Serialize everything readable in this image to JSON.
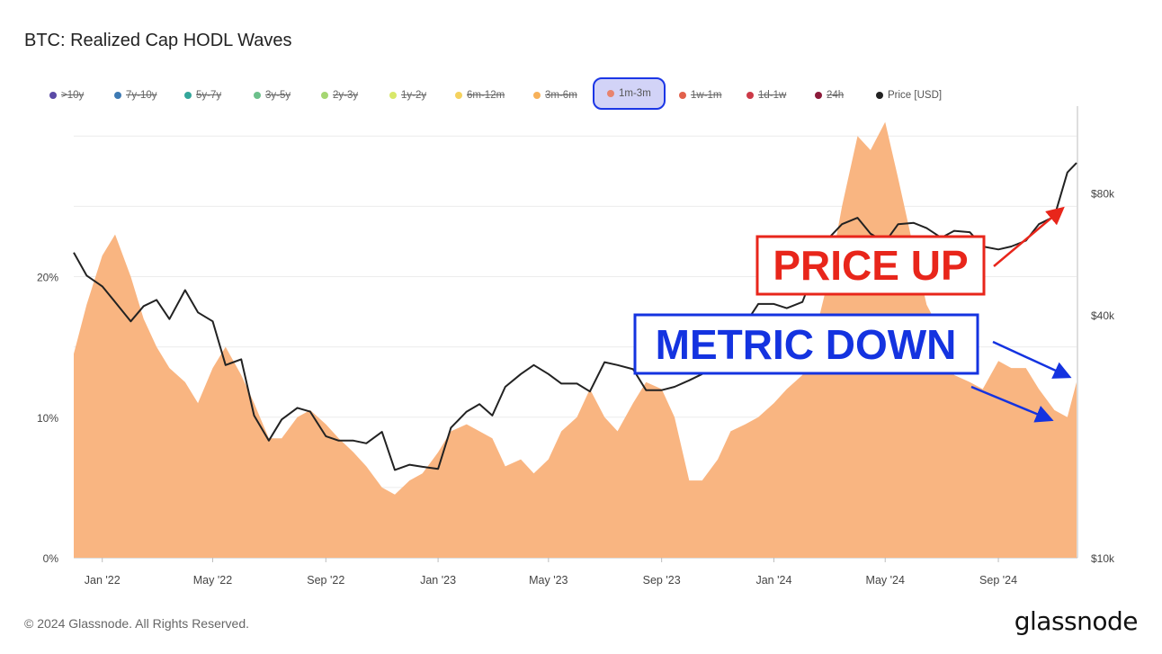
{
  "title": "BTC: Realized Cap HODL Waves",
  "legend": [
    {
      "label": ">10y",
      "color": "#5b4aa6",
      "active": false
    },
    {
      "label": "7y-10y",
      "color": "#3d7ab3",
      "active": false
    },
    {
      "label": "5y-7y",
      "color": "#33a69a",
      "active": false
    },
    {
      "label": "3y-5y",
      "color": "#6cc08b",
      "active": false
    },
    {
      "label": "2y-3y",
      "color": "#a5d672",
      "active": false
    },
    {
      "label": "1y-2y",
      "color": "#d8e86a",
      "active": false
    },
    {
      "label": "6m-12m",
      "color": "#f5d25e",
      "active": false
    },
    {
      "label": "3m-6m",
      "color": "#f7b15a",
      "active": false
    },
    {
      "label": "1m-3m",
      "color": "#e8836e",
      "active": true
    },
    {
      "label": "1w-1m",
      "color": "#e2614c",
      "active": false
    },
    {
      "label": "1d-1w",
      "color": "#cc3a48",
      "active": false
    },
    {
      "label": "24h",
      "color": "#8c1a3a",
      "active": false
    },
    {
      "label": "Price [USD]",
      "color": "#222222",
      "active": true
    }
  ],
  "annotations": {
    "price_up": "PRICE UP",
    "metric_down": "METRIC DOWN",
    "price_up_color": "#e8261b",
    "metric_down_color": "#1433e0"
  },
  "footer": "© 2024 Glassnode. All Rights Reserved.",
  "logo": "glassnode",
  "chart_data": {
    "type": "area",
    "title": "BTC: Realized Cap HODL Waves",
    "x_ticks": [
      "Jan '22",
      "May '22",
      "Sep '22",
      "Jan '23",
      "May '23",
      "Sep '23",
      "Jan '24",
      "May '24",
      "Sep '24"
    ],
    "y_left_ticks": [
      "0%",
      "10%",
      "20%"
    ],
    "y_left_range": [
      0,
      32
    ],
    "y_right_ticks": [
      "$10k",
      "$40k",
      "$80k"
    ],
    "y_right_scale": "log",
    "y_right_range": [
      10000,
      130000
    ],
    "grid": true,
    "legend_position": "top",
    "series": [
      {
        "name": "1m-3m",
        "axis": "left",
        "color": "#f9b581",
        "x": [
          "2021-12-01",
          "2021-12-15",
          "2022-01-01",
          "2022-01-15",
          "2022-02-01",
          "2022-02-15",
          "2022-03-01",
          "2022-03-15",
          "2022-04-01",
          "2022-04-15",
          "2022-05-01",
          "2022-05-15",
          "2022-06-01",
          "2022-06-15",
          "2022-07-01",
          "2022-07-15",
          "2022-08-01",
          "2022-08-15",
          "2022-09-01",
          "2022-09-15",
          "2022-10-01",
          "2022-10-15",
          "2022-11-01",
          "2022-11-15",
          "2022-12-01",
          "2022-12-15",
          "2023-01-01",
          "2023-01-15",
          "2023-02-01",
          "2023-02-15",
          "2023-03-01",
          "2023-03-15",
          "2023-04-01",
          "2023-04-15",
          "2023-05-01",
          "2023-05-15",
          "2023-06-01",
          "2023-06-15",
          "2023-07-01",
          "2023-07-15",
          "2023-08-01",
          "2023-08-15",
          "2023-09-01",
          "2023-09-15",
          "2023-10-01",
          "2023-10-15",
          "2023-11-01",
          "2023-11-15",
          "2023-12-01",
          "2023-12-15",
          "2024-01-01",
          "2024-01-15",
          "2024-02-01",
          "2024-02-15",
          "2024-03-01",
          "2024-03-15",
          "2024-04-01",
          "2024-04-15",
          "2024-05-01",
          "2024-05-15",
          "2024-06-01",
          "2024-06-15",
          "2024-07-01",
          "2024-07-15",
          "2024-08-01",
          "2024-08-15",
          "2024-09-01",
          "2024-09-15",
          "2024-10-01",
          "2024-10-15",
          "2024-11-01",
          "2024-11-15",
          "2024-11-25"
        ],
        "values": [
          14.5,
          18,
          21.5,
          23,
          20,
          17,
          15,
          13.5,
          12.5,
          11,
          13.5,
          15,
          13,
          11,
          8.5,
          8.5,
          10,
          10.5,
          9.5,
          8.5,
          7.5,
          6.5,
          5,
          4.5,
          5.5,
          6,
          7.5,
          9,
          9.5,
          9,
          8.5,
          6.5,
          7,
          6,
          7,
          9,
          10,
          12,
          10,
          9,
          11,
          12.5,
          12,
          10,
          5.5,
          5.5,
          7,
          9,
          9.5,
          10,
          11,
          12,
          13,
          16,
          20,
          25,
          30,
          29,
          31,
          27,
          22,
          18,
          16,
          13,
          12.5,
          12,
          14,
          13.5,
          13.5,
          12,
          10.5,
          10,
          12.5
        ]
      },
      {
        "name": "Price [USD]",
        "axis": "right",
        "color": "#222222",
        "x": [
          "2021-12-01",
          "2021-12-15",
          "2022-01-01",
          "2022-01-15",
          "2022-02-01",
          "2022-02-15",
          "2022-03-01",
          "2022-03-15",
          "2022-04-01",
          "2022-04-15",
          "2022-05-01",
          "2022-05-15",
          "2022-06-01",
          "2022-06-15",
          "2022-07-01",
          "2022-07-15",
          "2022-08-01",
          "2022-08-15",
          "2022-09-01",
          "2022-09-15",
          "2022-10-01",
          "2022-10-15",
          "2022-11-01",
          "2022-11-15",
          "2022-12-01",
          "2022-12-15",
          "2023-01-01",
          "2023-01-15",
          "2023-02-01",
          "2023-02-15",
          "2023-03-01",
          "2023-03-15",
          "2023-04-01",
          "2023-04-15",
          "2023-05-01",
          "2023-05-15",
          "2023-06-01",
          "2023-06-15",
          "2023-07-01",
          "2023-07-15",
          "2023-08-01",
          "2023-08-15",
          "2023-09-01",
          "2023-09-15",
          "2023-10-01",
          "2023-10-15",
          "2023-11-01",
          "2023-11-15",
          "2023-12-01",
          "2023-12-15",
          "2024-01-01",
          "2024-01-15",
          "2024-02-01",
          "2024-02-15",
          "2024-03-01",
          "2024-03-15",
          "2024-04-01",
          "2024-04-15",
          "2024-05-01",
          "2024-05-15",
          "2024-06-01",
          "2024-06-15",
          "2024-07-01",
          "2024-07-15",
          "2024-08-01",
          "2024-08-15",
          "2024-09-01",
          "2024-09-15",
          "2024-10-01",
          "2024-10-15",
          "2024-11-01",
          "2024-11-15",
          "2024-11-25"
        ],
        "values": [
          57000,
          50000,
          47000,
          43000,
          38500,
          42000,
          43500,
          39000,
          46000,
          40500,
          38500,
          30000,
          31000,
          22500,
          19500,
          22000,
          23500,
          23000,
          20000,
          19500,
          19500,
          19200,
          20500,
          16500,
          17000,
          16800,
          16600,
          21000,
          23000,
          24000,
          22500,
          26500,
          28500,
          30000,
          28500,
          27000,
          27000,
          25800,
          30500,
          30000,
          29300,
          26000,
          26000,
          26500,
          27500,
          28500,
          34500,
          36500,
          38000,
          42500,
          42500,
          41500,
          43000,
          52000,
          62000,
          67000,
          69500,
          63500,
          60500,
          67000,
          67500,
          65500,
          62000,
          64500,
          64000,
          59000,
          58000,
          59000,
          61000,
          67000,
          70000,
          90000,
          95000
        ]
      }
    ]
  }
}
